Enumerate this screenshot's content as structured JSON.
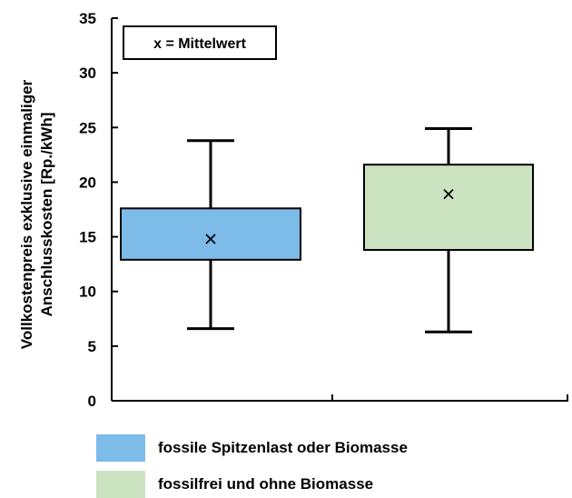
{
  "chart_data": {
    "type": "box",
    "ylabel": [
      "Vollkostenpreis exklusive einmaliger",
      "Anschlusskosten [Rp./kWh]"
    ],
    "ylim": [
      0,
      35
    ],
    "yticks": [
      0,
      5,
      10,
      15,
      20,
      25,
      30,
      35
    ],
    "note": "x = Mittelwert",
    "series": [
      {
        "name": "fossile Spitzenlast oder Biomasse",
        "color": "#7dbbe8",
        "whisker_low": 6.6,
        "q1": 12.9,
        "mean": 14.8,
        "q3": 17.6,
        "whisker_high": 23.8
      },
      {
        "name": "fossilfrei und ohne Biomasse",
        "color": "#cce3c2",
        "whisker_low": 6.3,
        "q1": 13.8,
        "mean": 18.9,
        "q3": 21.6,
        "whisker_high": 24.9
      }
    ]
  }
}
